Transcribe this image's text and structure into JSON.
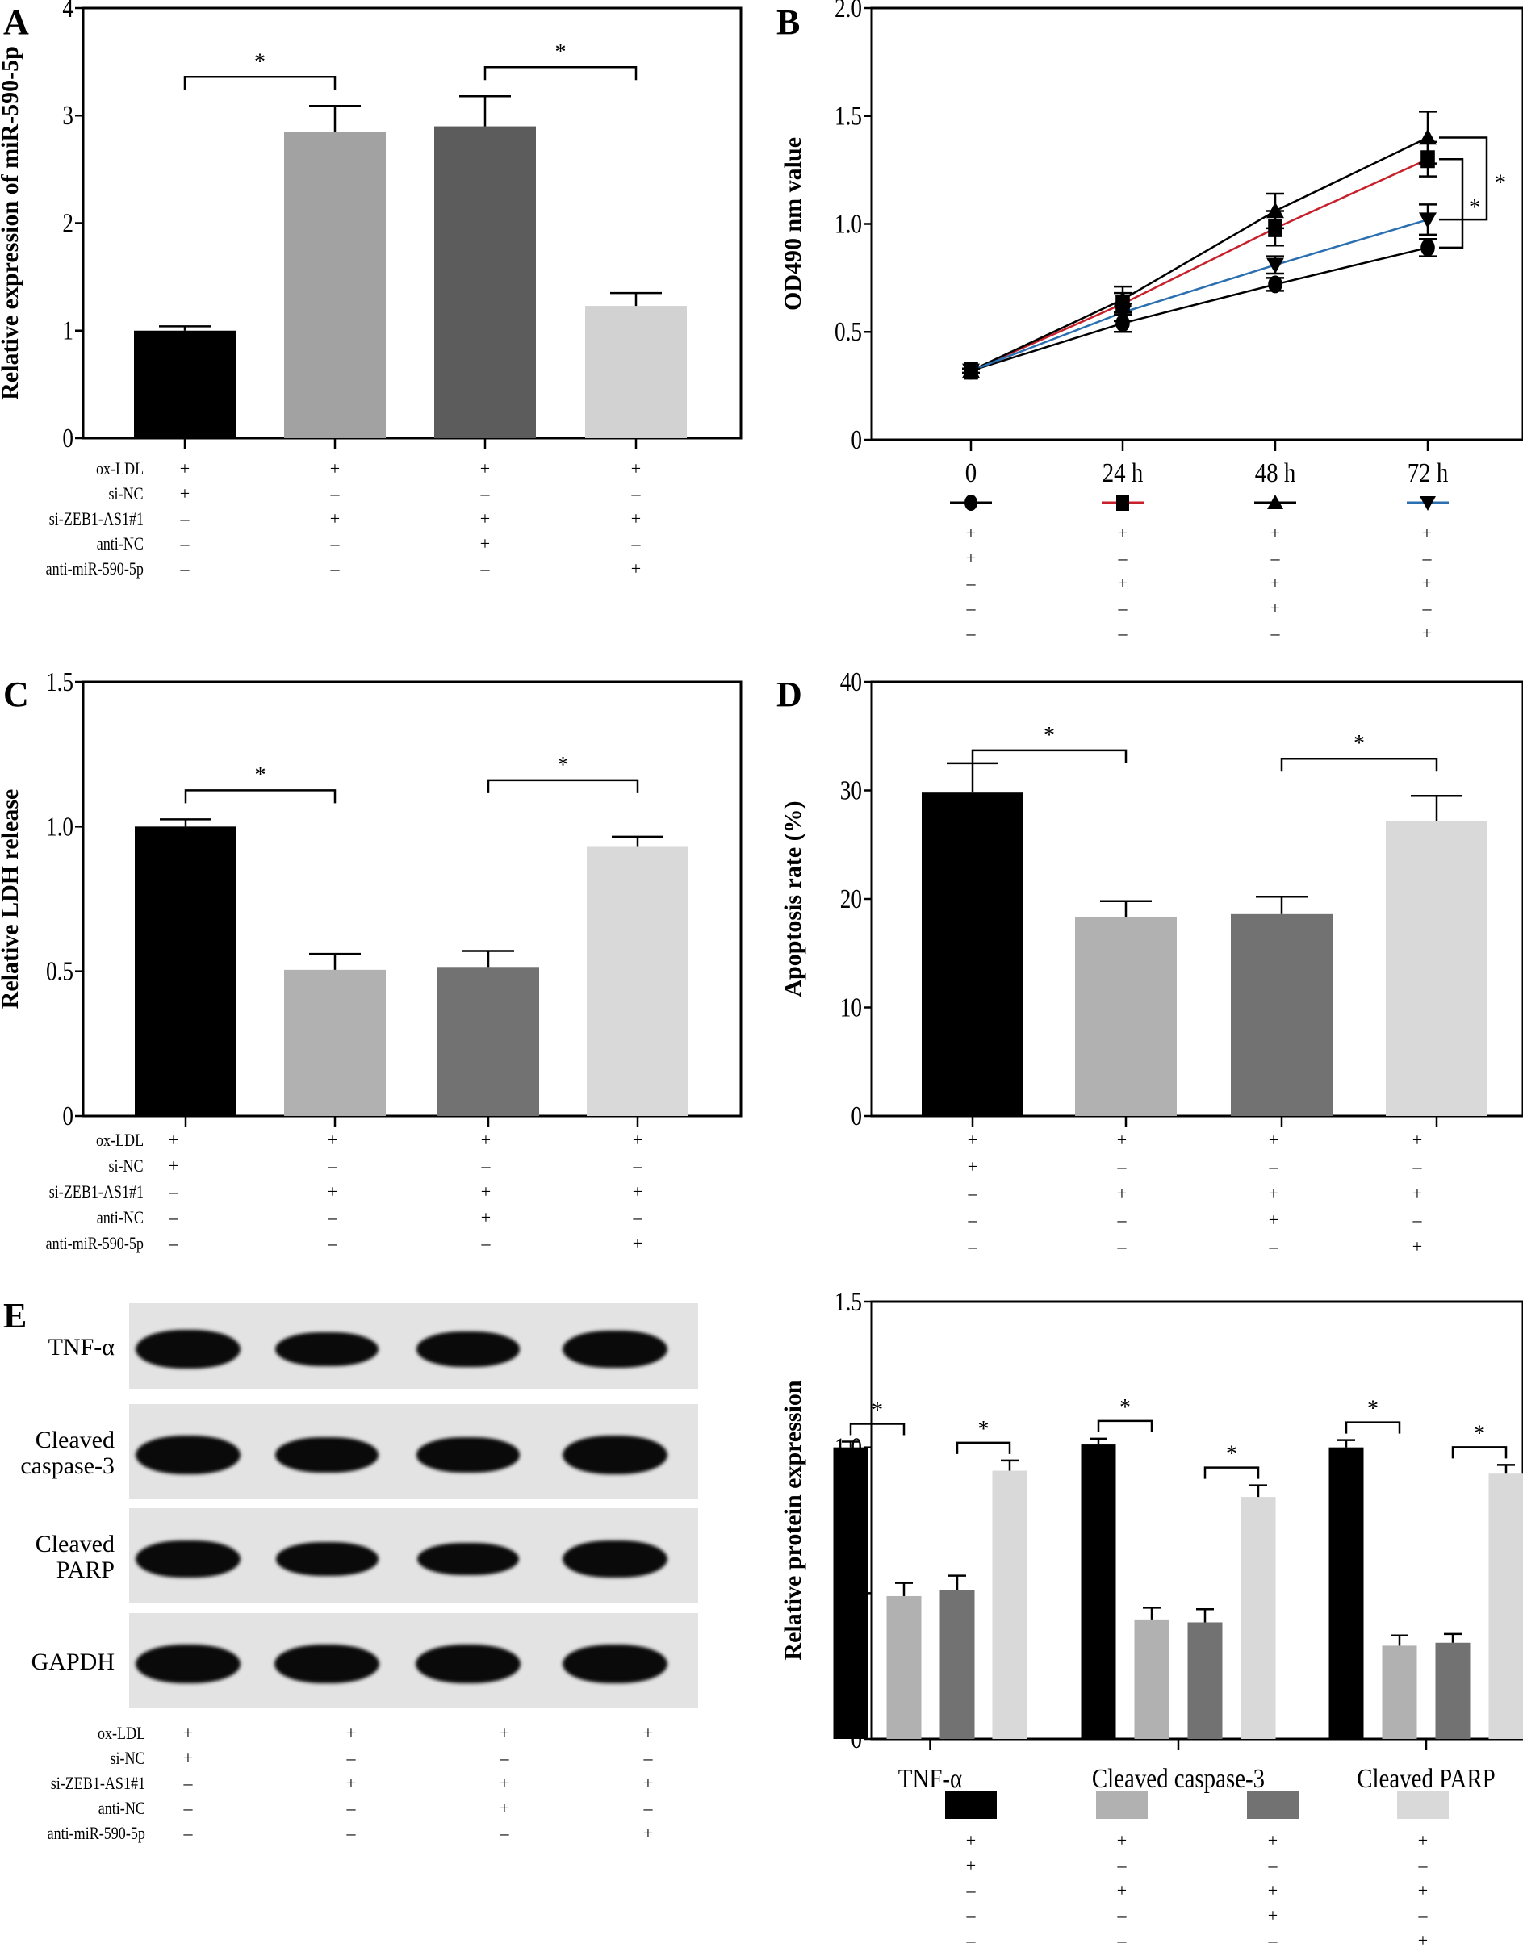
{
  "figure": {
    "panel_letters": [
      "A",
      "B",
      "C",
      "D",
      "E"
    ],
    "treatment_rows": [
      "ox-LDL",
      "si-NC",
      "si-ZEB1-AS1#1",
      "anti-NC",
      "anti-miR-590-5p"
    ],
    "treatment_matrix": [
      [
        "+",
        "+",
        "+",
        "+"
      ],
      [
        "+",
        "–",
        "–",
        "–"
      ],
      [
        "–",
        "+",
        "+",
        "+"
      ],
      [
        "–",
        "–",
        "+",
        "–"
      ],
      [
        "–",
        "–",
        "–",
        "+"
      ]
    ],
    "group_colors_A": [
      "#000000",
      "#a2a2a2",
      "#5c5c5c",
      "#d2d2d2"
    ],
    "group_colors": [
      "#000000",
      "#b1b1b1",
      "#727272",
      "#d9d9d9"
    ],
    "significance_marker": "*"
  },
  "chart_data": [
    {
      "panel": "A",
      "type": "bar",
      "title": "",
      "xlabel": "",
      "ylabel": "Relative expression of miR-590-5p",
      "ylim": [
        0,
        4
      ],
      "yticks": [
        "0",
        "1",
        "2",
        "3",
        "4"
      ],
      "categories": [
        "si-NC",
        "si-ZEB1-AS1#1",
        "si-ZEB1-AS1#1 + anti-NC",
        "si-ZEB1-AS1#1 + anti-miR-590-5p"
      ],
      "values": [
        1.0,
        2.85,
        2.9,
        1.23
      ],
      "errors": [
        0.04,
        0.24,
        0.28,
        0.12
      ],
      "significance": [
        {
          "from": 0,
          "to": 1,
          "label": "*"
        },
        {
          "from": 2,
          "to": 3,
          "label": "*"
        }
      ]
    },
    {
      "panel": "B",
      "type": "line",
      "title": "",
      "xlabel": "",
      "ylabel": "OD490 nm value",
      "ylim": [
        0,
        2.0
      ],
      "yticks": [
        "0",
        "0.5",
        "1.0",
        "1.5",
        "2.0"
      ],
      "x": [
        "0",
        "24 h",
        "48 h",
        "72 h"
      ],
      "series": [
        {
          "name": "si-NC",
          "marker": "circle",
          "color": "#000000",
          "values": [
            0.32,
            0.54,
            0.72,
            0.89
          ],
          "errors": [
            0.01,
            0.04,
            0.03,
            0.04
          ]
        },
        {
          "name": "si-ZEB1-AS1#1",
          "marker": "square",
          "color": "#c8202a",
          "values": [
            0.32,
            0.63,
            0.98,
            1.3
          ],
          "errors": [
            0.01,
            0.05,
            0.08,
            0.08
          ]
        },
        {
          "name": "si-ZEB1-AS1#1 + anti-NC",
          "marker": "triangle-up",
          "color": "#000000",
          "values": [
            0.32,
            0.65,
            1.06,
            1.4
          ],
          "errors": [
            0.01,
            0.06,
            0.08,
            0.12
          ]
        },
        {
          "name": "si-ZEB1-AS1#1 + anti-miR-590-5p",
          "marker": "triangle-down",
          "color": "#2a6fb0",
          "values": [
            0.32,
            0.59,
            0.81,
            1.02
          ],
          "errors": [
            0.01,
            0.04,
            0.04,
            0.07
          ]
        }
      ],
      "significance": [
        {
          "between": [
            "si-ZEB1-AS1#1",
            "si-NC"
          ],
          "label": "*"
        },
        {
          "between": [
            "si-ZEB1-AS1#1 + anti-NC",
            "si-ZEB1-AS1#1 + anti-miR-590-5p"
          ],
          "label": "*"
        }
      ]
    },
    {
      "panel": "C",
      "type": "bar",
      "title": "",
      "xlabel": "",
      "ylabel": "Relative LDH release",
      "ylim": [
        0,
        1.5
      ],
      "yticks": [
        "0",
        "0.5",
        "1.0",
        "1.5"
      ],
      "categories": [
        "si-NC",
        "si-ZEB1-AS1#1",
        "si-ZEB1-AS1#1 + anti-NC",
        "si-ZEB1-AS1#1 + anti-miR-590-5p"
      ],
      "values": [
        1.0,
        0.505,
        0.515,
        0.93
      ],
      "errors": [
        0.025,
        0.055,
        0.055,
        0.035
      ],
      "significance": [
        {
          "from": 0,
          "to": 1,
          "label": "*"
        },
        {
          "from": 2,
          "to": 3,
          "label": "*"
        }
      ]
    },
    {
      "panel": "D",
      "type": "bar",
      "title": "",
      "xlabel": "",
      "ylabel": "Apoptosis rate (%)",
      "ylim": [
        0,
        40
      ],
      "yticks": [
        "0",
        "10",
        "20",
        "30",
        "40"
      ],
      "categories": [
        "si-NC",
        "si-ZEB1-AS1#1",
        "si-ZEB1-AS1#1 + anti-NC",
        "si-ZEB1-AS1#1 + anti-miR-590-5p"
      ],
      "values": [
        29.8,
        18.3,
        18.6,
        27.2
      ],
      "errors": [
        2.7,
        1.5,
        1.6,
        2.3
      ],
      "significance": [
        {
          "from": 0,
          "to": 1,
          "label": "*"
        },
        {
          "from": 2,
          "to": 3,
          "label": "*"
        }
      ]
    },
    {
      "panel": "E",
      "type": "bar",
      "title": "",
      "xlabel": "",
      "ylabel": "Relative protein expression",
      "ylim": [
        0,
        1.5
      ],
      "yticks": [
        "0",
        "0.5",
        "1.0",
        "1.5"
      ],
      "categories": [
        "TNF-α",
        "Cleaved caspase-3",
        "Cleaved PARP"
      ],
      "series": [
        {
          "name": "si-NC",
          "values": [
            1.0,
            1.01,
            1.0
          ],
          "errors": [
            0.02,
            0.02,
            0.025
          ]
        },
        {
          "name": "si-ZEB1-AS1#1",
          "values": [
            0.49,
            0.41,
            0.32
          ],
          "errors": [
            0.045,
            0.04,
            0.035
          ]
        },
        {
          "name": "si-ZEB1-AS1#1 + anti-NC",
          "values": [
            0.51,
            0.4,
            0.33
          ],
          "errors": [
            0.05,
            0.045,
            0.03
          ]
        },
        {
          "name": "si-ZEB1-AS1#1 + anti-miR-590-5p",
          "values": [
            0.92,
            0.83,
            0.91
          ],
          "errors": [
            0.035,
            0.04,
            0.03
          ]
        }
      ],
      "significance": [
        {
          "group": 0,
          "from": 0,
          "to": 1,
          "label": "*"
        },
        {
          "group": 0,
          "from": 2,
          "to": 3,
          "label": "*"
        },
        {
          "group": 1,
          "from": 0,
          "to": 1,
          "label": "*"
        },
        {
          "group": 1,
          "from": 2,
          "to": 3,
          "label": "*"
        },
        {
          "group": 2,
          "from": 0,
          "to": 1,
          "label": "*"
        },
        {
          "group": 2,
          "from": 2,
          "to": 3,
          "label": "*"
        }
      ]
    }
  ],
  "western_blot": {
    "rows": [
      {
        "label_lines": [
          "TNF-α"
        ],
        "intensity": [
          1.0,
          0.75,
          0.78,
          0.95
        ]
      },
      {
        "label_lines": [
          "Cleaved",
          "caspase-3"
        ],
        "intensity": [
          1.0,
          0.8,
          0.78,
          1.0
        ]
      },
      {
        "label_lines": [
          "Cleaved",
          "PARP"
        ],
        "intensity": [
          0.95,
          0.7,
          0.68,
          0.95
        ]
      },
      {
        "label_lines": [
          "GAPDH"
        ],
        "intensity": [
          1.0,
          1.0,
          1.0,
          1.0
        ]
      }
    ]
  }
}
